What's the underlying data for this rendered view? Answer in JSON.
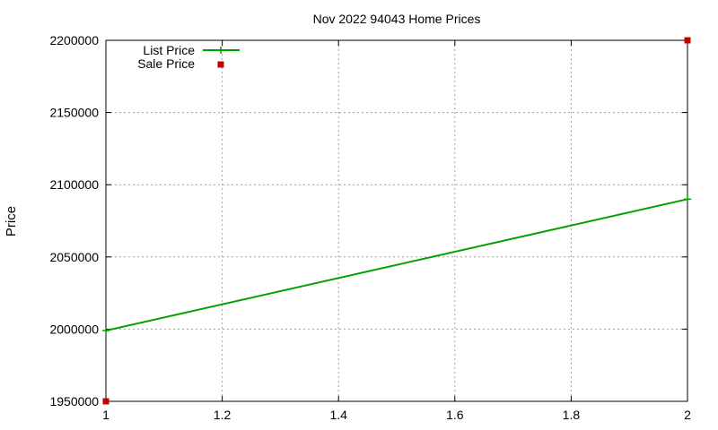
{
  "chart_data": {
    "type": "line",
    "title": "Nov 2022 94043 Home Prices",
    "xlabel": "",
    "ylabel": "Price",
    "xlim": [
      1,
      2
    ],
    "ylim": [
      1950000,
      2200000
    ],
    "x_ticks": [
      "1",
      "1.2",
      "1.4",
      "1.6",
      "1.8",
      "2"
    ],
    "y_ticks": [
      "1950000",
      "2000000",
      "2050000",
      "2100000",
      "2150000",
      "2200000"
    ],
    "grid": true,
    "legend_position": "top-left",
    "series": [
      {
        "name": "List Price",
        "style": "linespoints",
        "color": "#00a000",
        "marker": "plus",
        "points": [
          {
            "x": 1,
            "y": 1999000
          },
          {
            "x": 2,
            "y": 2090000
          }
        ]
      },
      {
        "name": "Sale Price",
        "style": "points",
        "color": "#c00000",
        "marker": "square",
        "points": [
          {
            "x": 1,
            "y": 1950000
          },
          {
            "x": 2,
            "y": 2200000
          }
        ]
      }
    ]
  }
}
